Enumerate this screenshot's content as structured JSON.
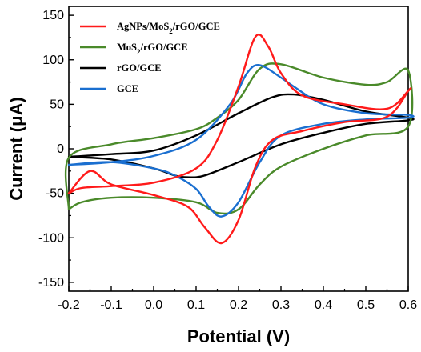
{
  "chart_data": {
    "type": "line",
    "title": "",
    "xlabel": "Potential (V)",
    "ylabel": "Current (μA)",
    "xlim": [
      -0.2,
      0.6
    ],
    "ylim": [
      -160,
      160
    ],
    "xticks": [
      "-0.2",
      "-0.1",
      "0.0",
      "0.1",
      "0.2",
      "0.3",
      "0.4",
      "0.5",
      "0.6"
    ],
    "yticks": [
      "-150",
      "-100",
      "-50",
      "0",
      "50",
      "100",
      "150"
    ],
    "grid": false,
    "legend_position": "top-left",
    "series": [
      {
        "name": "AgNPs/MoS2/rGO/GCE",
        "legend_main": "AgNPs/MoS",
        "legend_sub": "2",
        "legend_tail": "/rGO/GCE",
        "color": "#ff1a1a",
        "points": [
          [
            -0.2,
            -50
          ],
          [
            -0.17,
            -44
          ],
          [
            -0.1,
            -42
          ],
          [
            0,
            -38
          ],
          [
            0.1,
            -22
          ],
          [
            0.15,
            10
          ],
          [
            0.2,
            70
          ],
          [
            0.24,
            126
          ],
          [
            0.27,
            115
          ],
          [
            0.3,
            85
          ],
          [
            0.35,
            60
          ],
          [
            0.45,
            50
          ],
          [
            0.55,
            45
          ],
          [
            0.6,
            65
          ],
          [
            0.6,
            65
          ],
          [
            0.55,
            36
          ],
          [
            0.45,
            30
          ],
          [
            0.35,
            20
          ],
          [
            0.28,
            10
          ],
          [
            0.24,
            -20
          ],
          [
            0.2,
            -80
          ],
          [
            0.16,
            -106
          ],
          [
            0.12,
            -88
          ],
          [
            0.08,
            -65
          ],
          [
            0,
            -52
          ],
          [
            -0.1,
            -40
          ],
          [
            -0.15,
            -25
          ],
          [
            -0.2,
            -50
          ]
        ]
      },
      {
        "name": "MoS2/rGO/GCE",
        "legend_main": "MoS",
        "legend_sub": "2",
        "legend_tail": "/rGO/GCE",
        "color": "#4a8a2a",
        "points": [
          [
            -0.2,
            -68
          ],
          [
            -0.17,
            -60
          ],
          [
            -0.1,
            -55
          ],
          [
            0,
            -55
          ],
          [
            0.1,
            -60
          ],
          [
            0.15,
            -72
          ],
          [
            0.2,
            -68
          ],
          [
            0.25,
            -40
          ],
          [
            0.3,
            -20
          ],
          [
            0.4,
            0
          ],
          [
            0.5,
            15
          ],
          [
            0.6,
            25
          ],
          [
            0.6,
            88
          ],
          [
            0.55,
            75
          ],
          [
            0.5,
            72
          ],
          [
            0.4,
            80
          ],
          [
            0.3,
            95
          ],
          [
            0.25,
            90
          ],
          [
            0.2,
            55
          ],
          [
            0.15,
            35
          ],
          [
            0.1,
            22
          ],
          [
            0,
            12
          ],
          [
            -0.1,
            5
          ],
          [
            -0.2,
            -10
          ],
          [
            -0.2,
            -68
          ]
        ]
      },
      {
        "name": "rGO/GCE",
        "legend_main": "rGO/GCE",
        "legend_sub": "",
        "legend_tail": "",
        "color": "#000000",
        "points": [
          [
            -0.2,
            -9
          ],
          [
            -0.1,
            -12
          ],
          [
            0,
            -22
          ],
          [
            0.05,
            -30
          ],
          [
            0.08,
            -32
          ],
          [
            0.12,
            -30
          ],
          [
            0.2,
            -15
          ],
          [
            0.3,
            5
          ],
          [
            0.4,
            18
          ],
          [
            0.5,
            28
          ],
          [
            0.6,
            32
          ],
          [
            0.6,
            35
          ],
          [
            0.5,
            42
          ],
          [
            0.4,
            55
          ],
          [
            0.33,
            61
          ],
          [
            0.28,
            58
          ],
          [
            0.2,
            40
          ],
          [
            0.1,
            15
          ],
          [
            0,
            -2
          ],
          [
            -0.1,
            -6
          ],
          [
            -0.2,
            -9
          ]
        ]
      },
      {
        "name": "GCE",
        "legend_main": "GCE",
        "legend_sub": "",
        "legend_tail": "",
        "color": "#1a6fd0",
        "points": [
          [
            -0.2,
            -18
          ],
          [
            -0.1,
            -15
          ],
          [
            0,
            -22
          ],
          [
            0.05,
            -30
          ],
          [
            0.1,
            -45
          ],
          [
            0.13,
            -65
          ],
          [
            0.16,
            -76
          ],
          [
            0.2,
            -60
          ],
          [
            0.25,
            -15
          ],
          [
            0.3,
            15
          ],
          [
            0.4,
            28
          ],
          [
            0.5,
            33
          ],
          [
            0.6,
            35
          ],
          [
            0.6,
            38
          ],
          [
            0.5,
            40
          ],
          [
            0.4,
            50
          ],
          [
            0.33,
            70
          ],
          [
            0.3,
            80
          ],
          [
            0.25,
            94
          ],
          [
            0.22,
            85
          ],
          [
            0.18,
            50
          ],
          [
            0.1,
            10
          ],
          [
            0,
            -8
          ],
          [
            -0.1,
            -15
          ],
          [
            -0.2,
            -18
          ]
        ]
      }
    ]
  }
}
